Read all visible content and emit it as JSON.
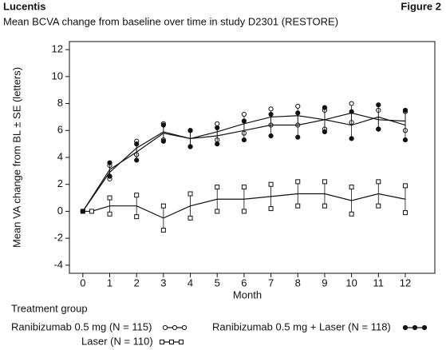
{
  "chart_data": {
    "type": "line",
    "brand": "Lucentis",
    "figure_label": "Figure 2",
    "title": "Mean BCVA change from baseline over time in study D2301 (RESTORE)",
    "xlabel": "Month",
    "ylabel": "Mean VA change from BL ± SE (letters)",
    "legend_title": "Treatment group",
    "xlim": [
      -0.5,
      13.1
    ],
    "xticks": [
      0,
      1,
      2,
      3,
      4,
      5,
      6,
      7,
      8,
      9,
      10,
      11,
      12
    ],
    "ylim": [
      -4.6,
      12.6
    ],
    "yticks": [
      -4,
      -2,
      0,
      2,
      4,
      6,
      8,
      10,
      12
    ],
    "series": [
      {
        "name": "Ranibizumab 0.5 mg (N = 115)",
        "color": "#111111",
        "marker": "open-circle",
        "x": [
          0,
          1,
          2,
          3,
          4,
          5,
          6,
          7,
          8,
          9,
          10,
          11,
          12
        ],
        "values": [
          0,
          2.9,
          4.7,
          5.9,
          5.4,
          5.9,
          6.5,
          7.0,
          7.1,
          6.8,
          7.3,
          6.8,
          6.7
        ],
        "errors": [
          0,
          0.5,
          0.5,
          0.6,
          0.6,
          0.6,
          0.7,
          0.6,
          0.7,
          0.7,
          0.7,
          0.7,
          0.7
        ]
      },
      {
        "name": "Laser (N = 110)",
        "color": "#111111",
        "marker": "open-square",
        "x": [
          0,
          0.33,
          1,
          2,
          3,
          4,
          5,
          6,
          7,
          8,
          9,
          10,
          11,
          12
        ],
        "values": [
          0,
          0,
          0.4,
          0.4,
          -0.5,
          0.4,
          0.9,
          0.9,
          1.1,
          1.3,
          1.3,
          0.8,
          1.3,
          0.9
        ],
        "errors": [
          0,
          0,
          0.6,
          0.8,
          0.9,
          0.9,
          0.9,
          0.9,
          0.9,
          0.9,
          0.9,
          1.0,
          0.9,
          1.0
        ]
      },
      {
        "name": "Ranibizumab 0.5 mg + Laser (N = 118)",
        "color": "#111111",
        "marker": "filled-circle",
        "x": [
          0,
          1,
          2,
          3,
          4,
          5,
          6,
          7,
          8,
          9,
          10,
          11,
          12
        ],
        "values": [
          0,
          3.1,
          4.4,
          5.8,
          5.4,
          5.6,
          6.0,
          6.4,
          6.4,
          6.8,
          6.4,
          7.0,
          6.4
        ],
        "errors": [
          0,
          0.5,
          0.6,
          0.6,
          0.6,
          0.6,
          0.7,
          0.8,
          0.9,
          0.9,
          1.0,
          0.9,
          1.1
        ]
      }
    ]
  }
}
